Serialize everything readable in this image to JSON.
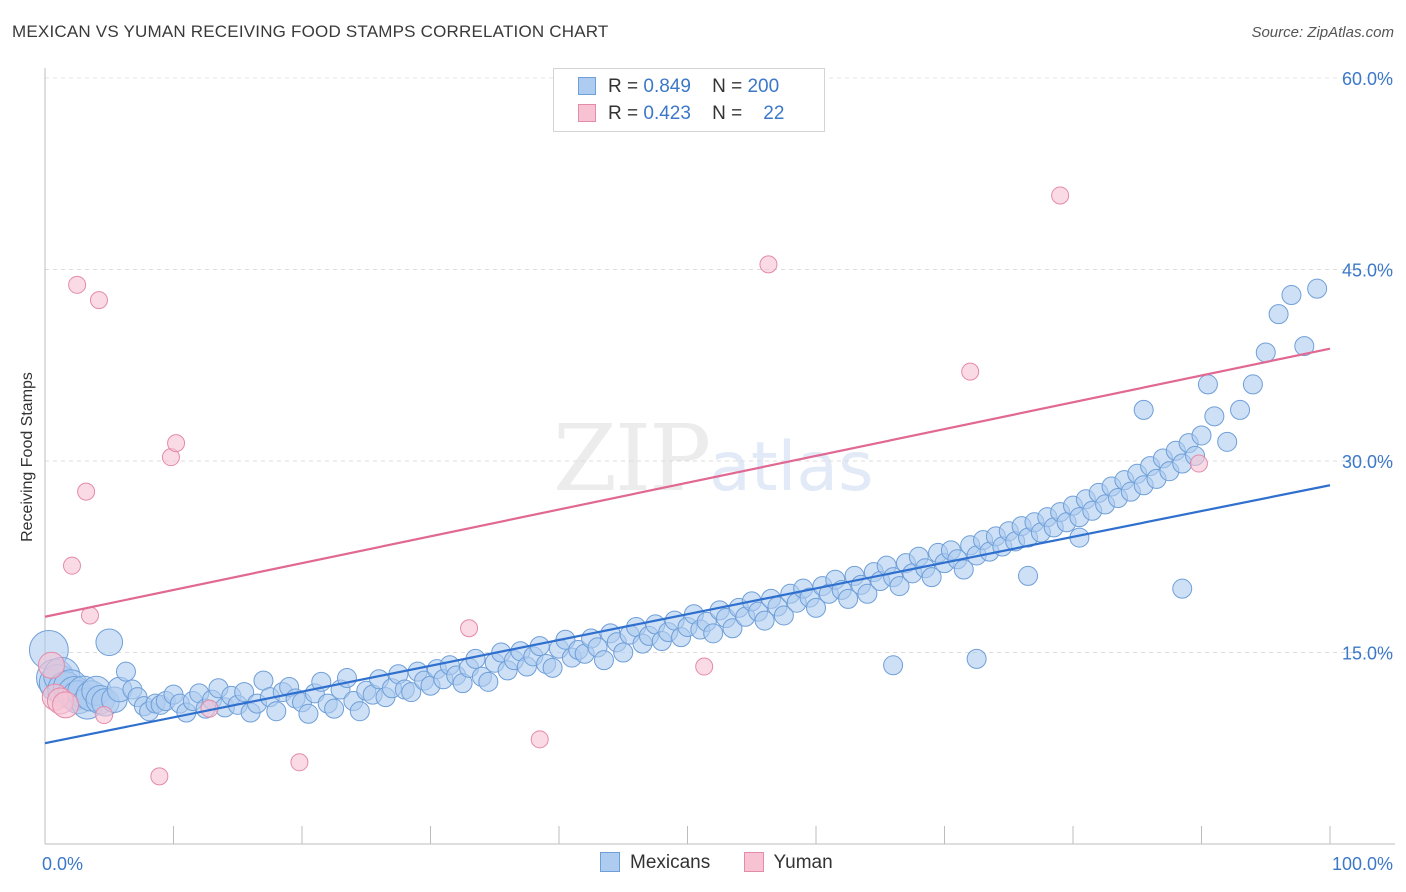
{
  "title": "MEXICAN VS YUMAN RECEIVING FOOD STAMPS CORRELATION CHART",
  "source": "Source: ZipAtlas.com",
  "watermark": {
    "main": "ZIP",
    "suffix": "atlas"
  },
  "legend_top": [
    {
      "r_label": "R =",
      "r_value": "0.849",
      "n_label": "N =",
      "n_value": "200"
    },
    {
      "r_label": "R =",
      "r_value": "0.423",
      "n_label": "N =",
      "n_value": "22"
    }
  ],
  "legend_bottom": [
    {
      "label": "Mexicans"
    },
    {
      "label": "Yuman"
    }
  ],
  "colors": {
    "mexicans_fill": "#aecbf0",
    "mexicans_stroke": "#6f9fd8",
    "mexicans_line": "#2f6fce",
    "yuman_fill": "#f7c3d3",
    "yuman_stroke": "#e58aa8",
    "yuman_line": "#e06892",
    "tick_label": "#3c78c8"
  },
  "chart_data": {
    "type": "scatter",
    "title": "MEXICAN VS YUMAN RECEIVING FOOD STAMPS CORRELATION CHART",
    "xlabel": "",
    "ylabel": "Receiving Food Stamps",
    "xlim": [
      0,
      100
    ],
    "ylim": [
      0,
      60
    ],
    "y_ticks": [
      15,
      30,
      45,
      60
    ],
    "y_tick_labels": [
      "15.0%",
      "30.0%",
      "45.0%",
      "60.0%"
    ],
    "x_tick_labels": [
      "0.0%",
      "100.0%"
    ],
    "grid": true,
    "legend_placement": "top-center",
    "series": [
      {
        "name": "Mexicans",
        "r": 0.849,
        "n": 200,
        "trend": [
          [
            0,
            7.9
          ],
          [
            100,
            28.1
          ]
        ],
        "points": [
          [
            0.3,
            15.2
          ],
          [
            0.8,
            13.0
          ],
          [
            1.0,
            12.6
          ],
          [
            1.3,
            13.2
          ],
          [
            1.6,
            12.1
          ],
          [
            2.0,
            12.3
          ],
          [
            2.3,
            11.8
          ],
          [
            2.6,
            11.5
          ],
          [
            3.0,
            11.9
          ],
          [
            3.3,
            11.0
          ],
          [
            3.6,
            11.6
          ],
          [
            4.0,
            12.0
          ],
          [
            4.3,
            11.3
          ],
          [
            4.7,
            11.1
          ],
          [
            5.0,
            15.8
          ],
          [
            5.4,
            11.3
          ],
          [
            5.8,
            12.1
          ],
          [
            6.3,
            13.5
          ],
          [
            6.8,
            12.1
          ],
          [
            7.2,
            11.5
          ],
          [
            7.7,
            10.8
          ],
          [
            8.1,
            10.4
          ],
          [
            8.6,
            11.0
          ],
          [
            9.0,
            10.9
          ],
          [
            9.4,
            11.2
          ],
          [
            10.0,
            11.7
          ],
          [
            10.5,
            11.0
          ],
          [
            11.0,
            10.3
          ],
          [
            11.5,
            11.2
          ],
          [
            12.0,
            11.8
          ],
          [
            12.5,
            10.6
          ],
          [
            13.0,
            11.3
          ],
          [
            13.5,
            12.2
          ],
          [
            14.0,
            10.7
          ],
          [
            14.5,
            11.6
          ],
          [
            15.0,
            10.9
          ],
          [
            15.5,
            11.9
          ],
          [
            16.0,
            10.3
          ],
          [
            16.5,
            11.0
          ],
          [
            17.0,
            12.8
          ],
          [
            17.5,
            11.5
          ],
          [
            18.0,
            10.4
          ],
          [
            18.5,
            11.9
          ],
          [
            19.0,
            12.3
          ],
          [
            19.5,
            11.4
          ],
          [
            20.0,
            11.1
          ],
          [
            20.5,
            10.2
          ],
          [
            21.0,
            11.8
          ],
          [
            21.5,
            12.7
          ],
          [
            22.0,
            11.0
          ],
          [
            22.5,
            10.6
          ],
          [
            23.0,
            12.1
          ],
          [
            23.5,
            13.0
          ],
          [
            24.0,
            11.2
          ],
          [
            24.5,
            10.4
          ],
          [
            25.0,
            12.0
          ],
          [
            25.5,
            11.7
          ],
          [
            26.0,
            12.9
          ],
          [
            26.5,
            11.5
          ],
          [
            27.0,
            12.2
          ],
          [
            27.5,
            13.3
          ],
          [
            28.0,
            12.1
          ],
          [
            28.5,
            11.9
          ],
          [
            29.0,
            13.5
          ],
          [
            29.5,
            12.8
          ],
          [
            30.0,
            12.4
          ],
          [
            30.5,
            13.7
          ],
          [
            31.0,
            12.9
          ],
          [
            31.5,
            14.0
          ],
          [
            32.0,
            13.2
          ],
          [
            32.5,
            12.6
          ],
          [
            33.0,
            13.8
          ],
          [
            33.5,
            14.5
          ],
          [
            34.0,
            13.1
          ],
          [
            34.5,
            12.7
          ],
          [
            35.0,
            14.2
          ],
          [
            35.5,
            15.0
          ],
          [
            36.0,
            13.6
          ],
          [
            36.5,
            14.4
          ],
          [
            37.0,
            15.1
          ],
          [
            37.5,
            13.9
          ],
          [
            38.0,
            14.7
          ],
          [
            38.5,
            15.5
          ],
          [
            39.0,
            14.1
          ],
          [
            39.5,
            13.8
          ],
          [
            40.0,
            15.3
          ],
          [
            40.5,
            16.0
          ],
          [
            41.0,
            14.6
          ],
          [
            41.5,
            15.2
          ],
          [
            42.0,
            14.9
          ],
          [
            42.5,
            16.1
          ],
          [
            43.0,
            15.4
          ],
          [
            43.5,
            14.4
          ],
          [
            44.0,
            16.5
          ],
          [
            44.5,
            15.8
          ],
          [
            45.0,
            15.0
          ],
          [
            45.5,
            16.4
          ],
          [
            46.0,
            17.0
          ],
          [
            46.5,
            15.7
          ],
          [
            47.0,
            16.3
          ],
          [
            47.5,
            17.2
          ],
          [
            48.0,
            15.9
          ],
          [
            48.5,
            16.6
          ],
          [
            49.0,
            17.5
          ],
          [
            49.5,
            16.2
          ],
          [
            50.0,
            17.0
          ],
          [
            50.5,
            18.0
          ],
          [
            51.0,
            16.8
          ],
          [
            51.5,
            17.4
          ],
          [
            52.0,
            16.5
          ],
          [
            52.5,
            18.3
          ],
          [
            53.0,
            17.7
          ],
          [
            53.5,
            16.9
          ],
          [
            54.0,
            18.5
          ],
          [
            54.5,
            17.8
          ],
          [
            55.0,
            19.0
          ],
          [
            55.5,
            18.2
          ],
          [
            56.0,
            17.5
          ],
          [
            56.5,
            19.2
          ],
          [
            57.0,
            18.6
          ],
          [
            57.5,
            17.9
          ],
          [
            58.0,
            19.6
          ],
          [
            58.5,
            18.9
          ],
          [
            59.0,
            20.0
          ],
          [
            59.5,
            19.3
          ],
          [
            60.0,
            18.5
          ],
          [
            60.5,
            20.2
          ],
          [
            61.0,
            19.6
          ],
          [
            61.5,
            20.7
          ],
          [
            62.0,
            19.9
          ],
          [
            62.5,
            19.2
          ],
          [
            63.0,
            21.0
          ],
          [
            63.5,
            20.3
          ],
          [
            64.0,
            19.6
          ],
          [
            64.5,
            21.3
          ],
          [
            65.0,
            20.6
          ],
          [
            65.5,
            21.8
          ],
          [
            66.0,
            20.9
          ],
          [
            66.5,
            20.2
          ],
          [
            67.0,
            22.0
          ],
          [
            67.5,
            21.2
          ],
          [
            68.0,
            22.5
          ],
          [
            68.5,
            21.6
          ],
          [
            69.0,
            20.9
          ],
          [
            69.5,
            22.8
          ],
          [
            70.0,
            22.0
          ],
          [
            70.5,
            23.0
          ],
          [
            71.0,
            22.3
          ],
          [
            71.5,
            21.5
          ],
          [
            72.0,
            23.4
          ],
          [
            72.5,
            22.6
          ],
          [
            73.0,
            23.8
          ],
          [
            73.5,
            22.9
          ],
          [
            74.0,
            24.1
          ],
          [
            74.5,
            23.3
          ],
          [
            75.0,
            24.5
          ],
          [
            75.5,
            23.7
          ],
          [
            76.0,
            24.9
          ],
          [
            76.5,
            24.0
          ],
          [
            77.0,
            25.2
          ],
          [
            77.5,
            24.4
          ],
          [
            78.0,
            25.6
          ],
          [
            78.5,
            24.8
          ],
          [
            79.0,
            26.0
          ],
          [
            79.5,
            25.2
          ],
          [
            80.0,
            26.5
          ],
          [
            80.5,
            25.6
          ],
          [
            81.0,
            27.0
          ],
          [
            81.5,
            26.1
          ],
          [
            82.0,
            27.5
          ],
          [
            82.5,
            26.6
          ],
          [
            83.0,
            28.0
          ],
          [
            83.5,
            27.1
          ],
          [
            84.0,
            28.5
          ],
          [
            84.5,
            27.6
          ],
          [
            85.0,
            29.0
          ],
          [
            85.5,
            28.1
          ],
          [
            86.0,
            29.6
          ],
          [
            86.5,
            28.6
          ],
          [
            87.0,
            30.2
          ],
          [
            87.5,
            29.2
          ],
          [
            88.0,
            30.8
          ],
          [
            88.5,
            29.8
          ],
          [
            89.0,
            31.4
          ],
          [
            89.5,
            30.4
          ],
          [
            90.0,
            32.0
          ],
          [
            91.0,
            33.5
          ],
          [
            92.0,
            31.5
          ],
          [
            93.0,
            34.0
          ],
          [
            94.0,
            36.0
          ],
          [
            95.0,
            38.5
          ],
          [
            96.0,
            41.5
          ],
          [
            97.0,
            43.0
          ],
          [
            98.0,
            39.0
          ],
          [
            99.0,
            43.5
          ],
          [
            85.5,
            34.0
          ],
          [
            88.5,
            20.0
          ],
          [
            80.5,
            24.0
          ],
          [
            76.5,
            21.0
          ],
          [
            72.5,
            14.5
          ],
          [
            66.0,
            14.0
          ],
          [
            90.5,
            36.0
          ]
        ]
      },
      {
        "name": "Yuman",
        "r": 0.423,
        "n": 22,
        "trend": [
          [
            0,
            17.8
          ],
          [
            100,
            38.8
          ]
        ],
        "points": [
          [
            0.5,
            14.0
          ],
          [
            0.8,
            11.5
          ],
          [
            1.2,
            11.2
          ],
          [
            1.6,
            10.9
          ],
          [
            2.1,
            21.8
          ],
          [
            2.5,
            43.8
          ],
          [
            3.2,
            27.6
          ],
          [
            3.5,
            17.9
          ],
          [
            4.2,
            42.6
          ],
          [
            4.6,
            10.1
          ],
          [
            8.9,
            5.3
          ],
          [
            9.8,
            30.3
          ],
          [
            10.2,
            31.4
          ],
          [
            12.8,
            10.6
          ],
          [
            19.8,
            6.4
          ],
          [
            33.0,
            16.9
          ],
          [
            38.5,
            8.2
          ],
          [
            51.3,
            13.9
          ],
          [
            56.3,
            45.4
          ],
          [
            72.0,
            37.0
          ],
          [
            79.0,
            50.8
          ],
          [
            89.8,
            29.8
          ]
        ]
      }
    ]
  }
}
